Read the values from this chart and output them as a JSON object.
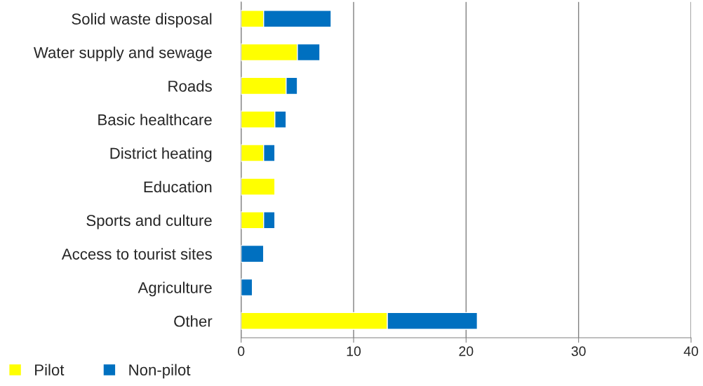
{
  "chart_data": {
    "type": "bar",
    "orientation": "horizontal",
    "stacked": true,
    "categories": [
      "Solid waste disposal",
      "Water supply and sewage",
      "Roads",
      "Basic healthcare",
      "District heating",
      "Education",
      "Sports and culture",
      "Access to tourist sites",
      "Agriculture",
      "Other"
    ],
    "series": [
      {
        "name": "Pilot",
        "color": "#ffff00",
        "values": [
          2,
          5,
          4,
          3,
          2,
          3,
          2,
          null,
          null,
          13
        ]
      },
      {
        "name": "Non-pilot",
        "color": "#0070c0",
        "values": [
          6,
          2,
          1,
          1,
          1,
          null,
          1,
          2,
          1,
          8
        ]
      }
    ],
    "xlim": [
      0,
      40
    ],
    "xticks": [
      0,
      10,
      20,
      30,
      40
    ],
    "grid": "x",
    "legend": "bottom left"
  }
}
